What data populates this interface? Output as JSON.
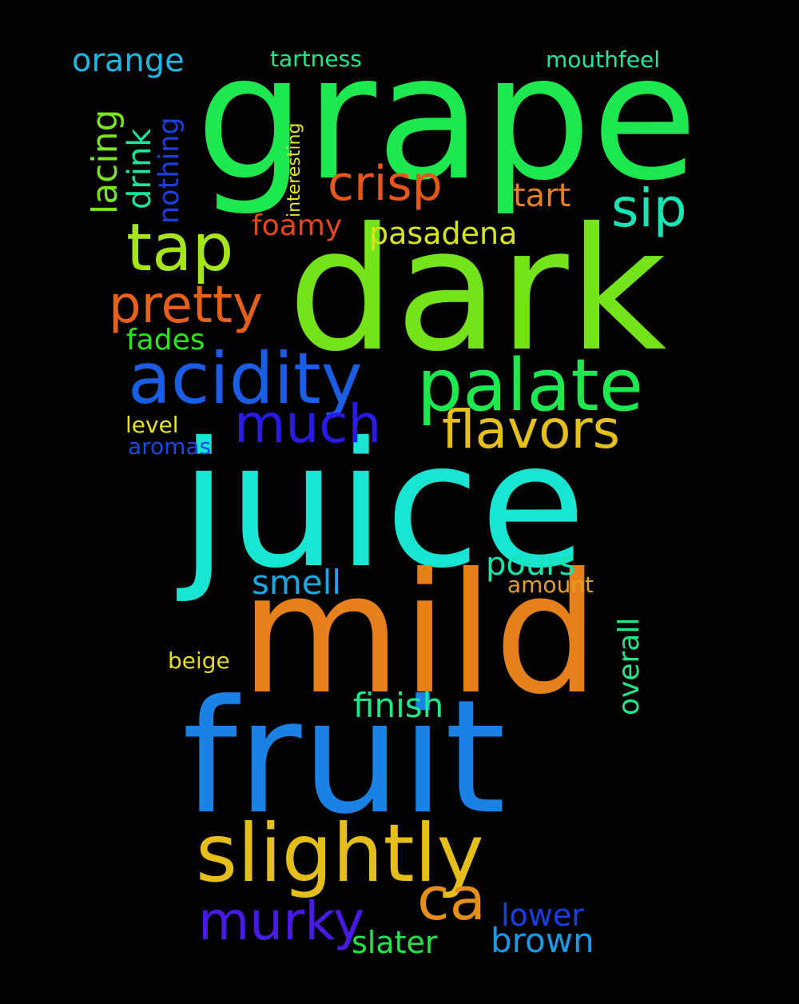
{
  "words": [
    {
      "text": "grape",
      "color": "#1de84f"
    },
    {
      "text": "dark",
      "color": "#74e31a"
    },
    {
      "text": "juice",
      "color": "#17e5d2"
    },
    {
      "text": "mild",
      "color": "#e5801a"
    },
    {
      "text": "fruit",
      "color": "#1a82e5"
    },
    {
      "text": "slightly",
      "color": "#e5be1a"
    },
    {
      "text": "acidity",
      "color": "#1a5ee5"
    },
    {
      "text": "palate",
      "color": "#1de84f"
    },
    {
      "text": "tap",
      "color": "#a6e51a"
    },
    {
      "text": "pretty",
      "color": "#e5601a"
    },
    {
      "text": "crisp",
      "color": "#e5581a"
    },
    {
      "text": "sip",
      "color": "#17e5b5"
    },
    {
      "text": "much",
      "color": "#2a1ae5"
    },
    {
      "text": "flavors",
      "color": "#e5c01a"
    },
    {
      "text": "ca",
      "color": "#e58f1a"
    },
    {
      "text": "murky",
      "color": "#481ae5"
    },
    {
      "text": "orange",
      "color": "#1ab8e5"
    },
    {
      "text": "lacing",
      "color": "#7ae51a"
    },
    {
      "text": "drink",
      "color": "#17e5a0"
    },
    {
      "text": "nothing",
      "color": "#1a40e5"
    },
    {
      "text": "interesting",
      "color": "#e5e51a"
    },
    {
      "text": "tartness",
      "color": "#1de88a"
    },
    {
      "text": "mouthfeel",
      "color": "#1de8a0"
    },
    {
      "text": "tart",
      "color": "#e5801a"
    },
    {
      "text": "foamy",
      "color": "#e5481a"
    },
    {
      "text": "pasadena",
      "color": "#d8e51a"
    },
    {
      "text": "fades",
      "color": "#2ae51a"
    },
    {
      "text": "level",
      "color": "#e5e51a"
    },
    {
      "text": "aromas",
      "color": "#1a48e5"
    },
    {
      "text": "smell",
      "color": "#1aa8e5"
    },
    {
      "text": "pours",
      "color": "#17e5b0"
    },
    {
      "text": "amount",
      "color": "#e5a01a"
    },
    {
      "text": "overall",
      "color": "#1de88a"
    },
    {
      "text": "beige",
      "color": "#e5dc1a"
    },
    {
      "text": "finish",
      "color": "#1de88a"
    },
    {
      "text": "lower",
      "color": "#1a3ee5"
    },
    {
      "text": "brown",
      "color": "#1a9ae5"
    },
    {
      "text": "slater",
      "color": "#1de84f"
    }
  ]
}
